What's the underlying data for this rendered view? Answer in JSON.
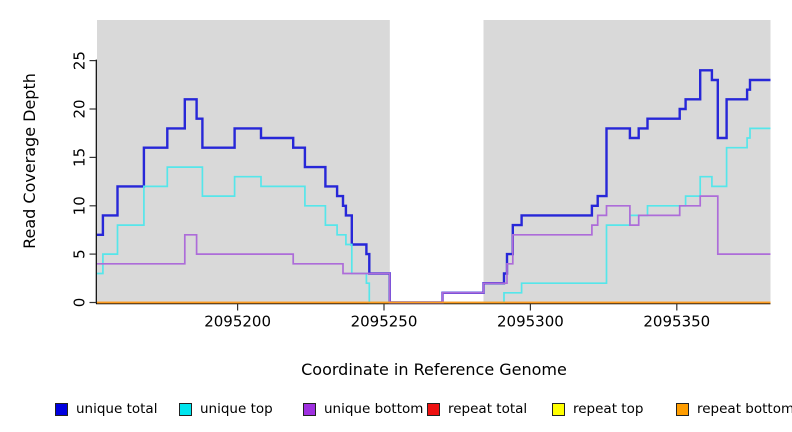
{
  "figure": {
    "xlabel": "Coordinate in Reference Genome",
    "ylabel": "Read Coverage Depth"
  },
  "chart_data": {
    "type": "line",
    "subtype": "step-coverage-plot",
    "title": "",
    "xlabel": "Coordinate in Reference Genome",
    "ylabel": "Read Coverage Depth",
    "xlim": [
      2095152,
      2095382
    ],
    "ylim": [
      0,
      29.2
    ],
    "x_ticks": [
      2095200,
      2095250,
      2095300,
      2095350
    ],
    "y_ticks": [
      0,
      5,
      10,
      15,
      20,
      25
    ],
    "grid": false,
    "plot_background": "#ffffff",
    "background_bands": [
      {
        "from": 2095152,
        "to": 2095252,
        "color": "#d9d9d9"
      },
      {
        "from": 2095284,
        "to": 2095382,
        "color": "#d9d9d9"
      }
    ],
    "legend_position": "bottom",
    "legend": [
      {
        "label": "unique total",
        "color": "#0000e0"
      },
      {
        "label": "unique top",
        "color": "#00e5ee"
      },
      {
        "label": "unique bottom",
        "color": "#9f30e0"
      },
      {
        "label": "repeat total",
        "color": "#ee1111"
      },
      {
        "label": "repeat top",
        "color": "#ffff00"
      },
      {
        "label": "repeat bottom",
        "color": "#ff9d00"
      }
    ],
    "series": [
      {
        "name": "unique total",
        "line_color": "#2727d8",
        "line_width": 2.4,
        "points": [
          [
            2095152,
            7
          ],
          [
            2095154,
            9
          ],
          [
            2095159,
            12
          ],
          [
            2095168,
            16
          ],
          [
            2095176,
            18
          ],
          [
            2095182,
            21
          ],
          [
            2095186,
            19
          ],
          [
            2095188,
            16
          ],
          [
            2095199,
            18
          ],
          [
            2095208,
            17
          ],
          [
            2095219,
            16
          ],
          [
            2095223,
            14
          ],
          [
            2095230,
            12
          ],
          [
            2095234,
            11
          ],
          [
            2095236,
            10
          ],
          [
            2095237,
            9
          ],
          [
            2095239,
            6
          ],
          [
            2095244,
            5
          ],
          [
            2095245,
            3
          ],
          [
            2095252,
            0
          ],
          [
            2095270,
            1
          ],
          [
            2095284,
            2
          ],
          [
            2095291,
            3
          ],
          [
            2095292,
            5
          ],
          [
            2095294,
            8
          ],
          [
            2095297,
            9
          ],
          [
            2095321,
            10
          ],
          [
            2095323,
            11
          ],
          [
            2095326,
            18
          ],
          [
            2095334,
            17
          ],
          [
            2095337,
            18
          ],
          [
            2095340,
            19
          ],
          [
            2095351,
            20
          ],
          [
            2095353,
            21
          ],
          [
            2095358,
            24
          ],
          [
            2095362,
            23
          ],
          [
            2095364,
            17
          ],
          [
            2095367,
            21
          ],
          [
            2095374,
            22
          ],
          [
            2095375,
            23
          ]
        ]
      },
      {
        "name": "unique top",
        "line_color": "#55e6ea",
        "line_width": 1.7,
        "points": [
          [
            2095152,
            3
          ],
          [
            2095154,
            5
          ],
          [
            2095159,
            8
          ],
          [
            2095168,
            12
          ],
          [
            2095176,
            14
          ],
          [
            2095188,
            11
          ],
          [
            2095199,
            13
          ],
          [
            2095208,
            12
          ],
          [
            2095223,
            10
          ],
          [
            2095230,
            8
          ],
          [
            2095234,
            7
          ],
          [
            2095237,
            6
          ],
          [
            2095239,
            3
          ],
          [
            2095244,
            2
          ],
          [
            2095245,
            0
          ],
          [
            2095291,
            1
          ],
          [
            2095297,
            2
          ],
          [
            2095326,
            8
          ],
          [
            2095334,
            9
          ],
          [
            2095340,
            10
          ],
          [
            2095353,
            11
          ],
          [
            2095358,
            13
          ],
          [
            2095362,
            12
          ],
          [
            2095367,
            16
          ],
          [
            2095374,
            17
          ],
          [
            2095375,
            18
          ]
        ]
      },
      {
        "name": "unique bottom",
        "line_color": "#ad6cd9",
        "line_width": 1.7,
        "points": [
          [
            2095152,
            4
          ],
          [
            2095182,
            7
          ],
          [
            2095186,
            5
          ],
          [
            2095219,
            4
          ],
          [
            2095236,
            3
          ],
          [
            2095252,
            0
          ],
          [
            2095270,
            1
          ],
          [
            2095284,
            2
          ],
          [
            2095292,
            4
          ],
          [
            2095294,
            7
          ],
          [
            2095321,
            8
          ],
          [
            2095323,
            9
          ],
          [
            2095326,
            10
          ],
          [
            2095334,
            8
          ],
          [
            2095337,
            9
          ],
          [
            2095351,
            10
          ],
          [
            2095358,
            11
          ],
          [
            2095364,
            5
          ]
        ]
      },
      {
        "name": "repeat total",
        "line_color": "#e02020",
        "line_width": 1.2,
        "points": [
          [
            2095152,
            0
          ]
        ]
      },
      {
        "name": "repeat top",
        "line_color": "#f0f020",
        "line_width": 1.2,
        "points": [
          [
            2095152,
            0
          ]
        ]
      },
      {
        "name": "repeat bottom",
        "line_color": "#ff9d20",
        "line_width": 1.8,
        "points": [
          [
            2095152,
            0
          ]
        ]
      }
    ]
  }
}
